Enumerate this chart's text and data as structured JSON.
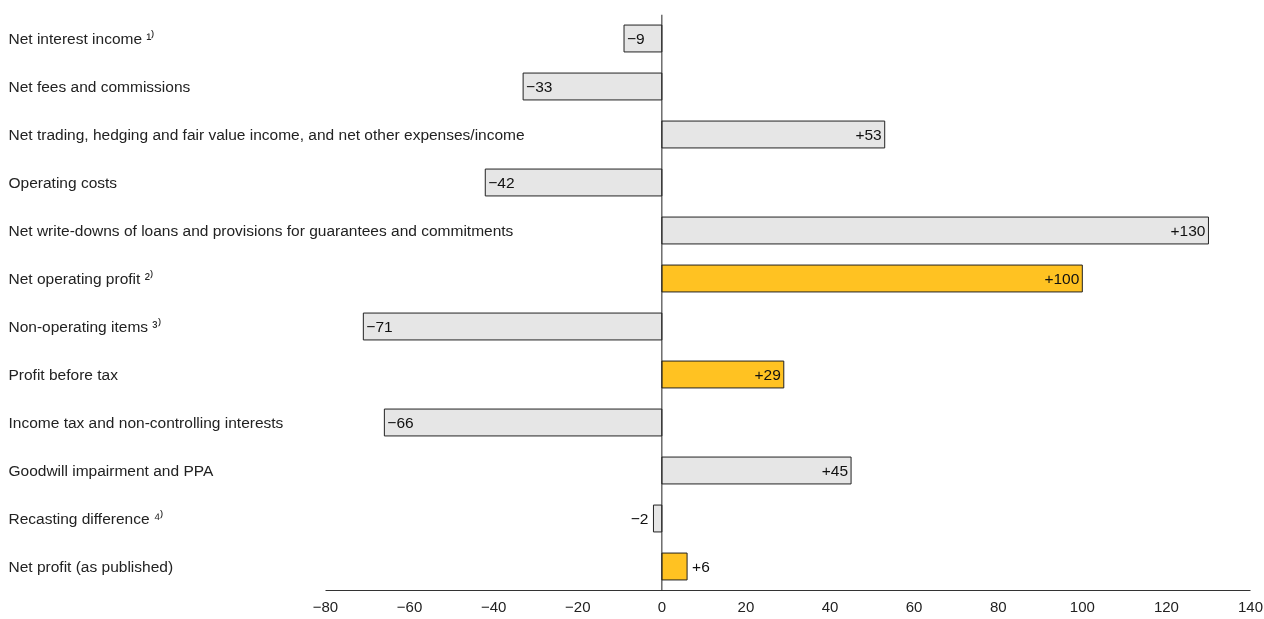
{
  "chart_data": {
    "type": "bar",
    "orientation": "horizontal",
    "categories": [
      "Net interest income ¹⁾",
      "Net fees and commissions",
      "Net trading, hedging and fair value income, and net other expenses/income",
      "Operating costs",
      "Net write-downs of loans and provisions for guarantees and commitments",
      "Net operating profit ²⁾",
      "Non-operating items ³⁾",
      "Profit before tax",
      "Income tax and non-controlling interests",
      "Goodwill impairment and PPA",
      "Recasting difference ⁴⁾",
      "Net profit (as published)"
    ],
    "values": [
      -9,
      -33,
      53,
      -42,
      130,
      100,
      -71,
      29,
      -66,
      45,
      -2,
      6
    ],
    "value_labels": [
      "−9",
      "−33",
      "+53",
      "−42",
      "+130",
      "+100",
      "−71",
      "+29",
      "−66",
      "+45",
      "−2",
      "+6"
    ],
    "colors": [
      "#e6e6e6",
      "#e6e6e6",
      "#e6e6e6",
      "#e6e6e6",
      "#e6e6e6",
      "#ffc222",
      "#e6e6e6",
      "#ffc222",
      "#e6e6e6",
      "#e6e6e6",
      "#e6e6e6",
      "#ffc222"
    ],
    "xlim": [
      -80,
      140
    ],
    "xticks": [
      {
        "value": -80,
        "label": "−80"
      },
      {
        "value": -60,
        "label": "−60"
      },
      {
        "value": -40,
        "label": "−40"
      },
      {
        "value": -20,
        "label": "−20"
      },
      0,
      20,
      40,
      60,
      80,
      100,
      120,
      140
    ],
    "tick_labels": "x"
  }
}
